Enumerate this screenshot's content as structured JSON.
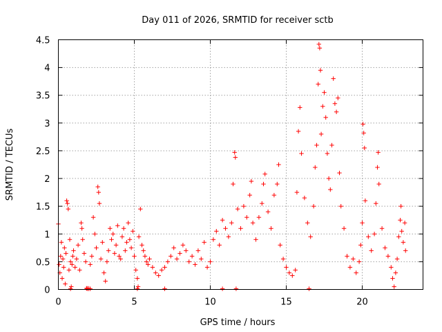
{
  "chart_data": {
    "type": "scatter",
    "title": "Day 011 of 2026, SRMTID for receiver sctb",
    "xlabel": "GPS time / hours",
    "ylabel": "SRMTID / TECUs",
    "xlim": [
      0,
      24
    ],
    "ylim": [
      0,
      4.5
    ],
    "xticks": [
      0,
      5,
      10,
      15,
      20
    ],
    "xtick_labels": [
      "0",
      "5",
      "10",
      "15",
      "20"
    ],
    "yticks": [
      0,
      0.5,
      1,
      1.5,
      2,
      2.5,
      3,
      3.5,
      4,
      4.5
    ],
    "ytick_labels": [
      "0",
      "0.5",
      "1",
      "1.5",
      "2",
      "2.5",
      "3",
      "3.5",
      "4",
      "4.5"
    ],
    "grid": true,
    "marker": "plus",
    "color": "#ff0000",
    "series": [
      {
        "name": "SRMTID",
        "points": [
          [
            0.0,
            1.18
          ],
          [
            0.05,
            0.45
          ],
          [
            0.1,
            0.3
          ],
          [
            0.15,
            0.6
          ],
          [
            0.2,
            0.85
          ],
          [
            0.25,
            0.2
          ],
          [
            0.3,
            0.55
          ],
          [
            0.35,
            0.4
          ],
          [
            0.4,
            0.75
          ],
          [
            0.45,
            0.1
          ],
          [
            0.5,
            0.65
          ],
          [
            0.55,
            1.6
          ],
          [
            0.6,
            1.55
          ],
          [
            0.65,
            1.45
          ],
          [
            0.7,
            0.35
          ],
          [
            0.75,
            0.9
          ],
          [
            0.8,
            0.5
          ],
          [
            0.85,
            0.05
          ],
          [
            0.9,
            0.45
          ],
          [
            0.95,
            0.6
          ],
          [
            1.0,
            0.7
          ],
          [
            1.1,
            0.4
          ],
          [
            1.2,
            0.55
          ],
          [
            1.3,
            0.8
          ],
          [
            1.4,
            0.35
          ],
          [
            1.5,
            1.2
          ],
          [
            1.55,
            1.1
          ],
          [
            1.6,
            0.9
          ],
          [
            1.7,
            0.65
          ],
          [
            1.8,
            0.5
          ],
          [
            1.85,
            0.02
          ],
          [
            1.9,
            0.02
          ],
          [
            2.0,
            0.02
          ],
          [
            2.1,
            0.45
          ],
          [
            2.2,
            0.6
          ],
          [
            2.3,
            1.3
          ],
          [
            2.4,
            1.0
          ],
          [
            2.5,
            0.75
          ],
          [
            2.6,
            1.85
          ],
          [
            2.65,
            1.75
          ],
          [
            2.7,
            1.55
          ],
          [
            2.8,
            0.55
          ],
          [
            2.9,
            0.85
          ],
          [
            3.0,
            0.3
          ],
          [
            3.1,
            0.15
          ],
          [
            3.2,
            0.5
          ],
          [
            3.3,
            0.7
          ],
          [
            3.4,
            1.1
          ],
          [
            3.5,
            0.9
          ],
          [
            3.6,
            1.0
          ],
          [
            3.7,
            0.65
          ],
          [
            3.8,
            0.8
          ],
          [
            3.9,
            1.15
          ],
          [
            4.0,
            0.6
          ],
          [
            4.1,
            0.55
          ],
          [
            4.2,
            0.95
          ],
          [
            4.3,
            1.1
          ],
          [
            4.4,
            0.7
          ],
          [
            4.5,
            0.85
          ],
          [
            4.6,
            1.2
          ],
          [
            4.7,
            0.9
          ],
          [
            4.8,
            0.75
          ],
          [
            4.9,
            1.05
          ],
          [
            5.0,
            0.6
          ],
          [
            5.1,
            0.35
          ],
          [
            5.2,
            0.2
          ],
          [
            5.25,
            0.05
          ],
          [
            5.3,
            0.95
          ],
          [
            5.4,
            1.45
          ],
          [
            5.5,
            0.8
          ],
          [
            5.6,
            0.7
          ],
          [
            5.7,
            0.6
          ],
          [
            5.8,
            0.5
          ],
          [
            5.9,
            0.45
          ],
          [
            6.0,
            0.55
          ],
          [
            6.2,
            0.4
          ],
          [
            6.4,
            0.3
          ],
          [
            6.6,
            0.25
          ],
          [
            6.8,
            0.35
          ],
          [
            7.0,
            0.4
          ],
          [
            7.2,
            0.5
          ],
          [
            7.4,
            0.6
          ],
          [
            7.6,
            0.75
          ],
          [
            7.8,
            0.55
          ],
          [
            8.0,
            0.65
          ],
          [
            8.2,
            0.8
          ],
          [
            8.4,
            0.7
          ],
          [
            8.6,
            0.5
          ],
          [
            8.8,
            0.6
          ],
          [
            9.0,
            0.45
          ],
          [
            9.2,
            0.7
          ],
          [
            9.4,
            0.55
          ],
          [
            9.6,
            0.85
          ],
          [
            9.8,
            0.4
          ],
          [
            10.0,
            0.5
          ],
          [
            10.2,
            0.9
          ],
          [
            10.4,
            1.05
          ],
          [
            10.6,
            0.8
          ],
          [
            10.8,
            1.25
          ],
          [
            11.0,
            1.1
          ],
          [
            11.2,
            0.95
          ],
          [
            11.4,
            1.2
          ],
          [
            11.5,
            1.9
          ],
          [
            11.6,
            2.47
          ],
          [
            11.65,
            2.38
          ],
          [
            11.8,
            1.45
          ],
          [
            12.0,
            1.1
          ],
          [
            12.2,
            1.5
          ],
          [
            12.4,
            1.3
          ],
          [
            12.6,
            1.7
          ],
          [
            12.7,
            1.95
          ],
          [
            12.8,
            1.2
          ],
          [
            13.0,
            0.9
          ],
          [
            13.2,
            1.3
          ],
          [
            13.4,
            1.55
          ],
          [
            13.5,
            1.9
          ],
          [
            13.6,
            2.08
          ],
          [
            13.8,
            1.4
          ],
          [
            14.0,
            1.1
          ],
          [
            14.2,
            1.7
          ],
          [
            14.4,
            1.9
          ],
          [
            14.5,
            2.25
          ],
          [
            14.6,
            0.8
          ],
          [
            14.8,
            0.55
          ],
          [
            15.0,
            0.4
          ],
          [
            15.2,
            0.3
          ],
          [
            15.4,
            0.25
          ],
          [
            15.6,
            0.35
          ],
          [
            15.7,
            1.75
          ],
          [
            15.8,
            2.85
          ],
          [
            15.9,
            3.28
          ],
          [
            16.0,
            2.45
          ],
          [
            16.2,
            1.65
          ],
          [
            16.4,
            1.2
          ],
          [
            16.6,
            0.95
          ],
          [
            16.8,
            1.5
          ],
          [
            16.9,
            2.2
          ],
          [
            17.0,
            2.6
          ],
          [
            17.1,
            3.7
          ],
          [
            17.15,
            4.42
          ],
          [
            17.2,
            4.35
          ],
          [
            17.25,
            3.95
          ],
          [
            17.3,
            2.8
          ],
          [
            17.4,
            3.3
          ],
          [
            17.5,
            3.55
          ],
          [
            17.6,
            3.1
          ],
          [
            17.7,
            2.45
          ],
          [
            17.8,
            2.0
          ],
          [
            17.9,
            1.8
          ],
          [
            18.0,
            2.6
          ],
          [
            18.1,
            3.8
          ],
          [
            18.2,
            3.35
          ],
          [
            18.3,
            3.2
          ],
          [
            18.4,
            3.45
          ],
          [
            18.5,
            2.1
          ],
          [
            18.6,
            1.5
          ],
          [
            18.8,
            1.1
          ],
          [
            19.0,
            0.6
          ],
          [
            19.2,
            0.4
          ],
          [
            19.4,
            0.55
          ],
          [
            19.6,
            0.3
          ],
          [
            19.8,
            0.5
          ],
          [
            19.9,
            0.8
          ],
          [
            20.0,
            1.2
          ],
          [
            20.05,
            2.98
          ],
          [
            20.1,
            2.82
          ],
          [
            20.15,
            2.55
          ],
          [
            20.2,
            1.6
          ],
          [
            20.4,
            0.95
          ],
          [
            20.6,
            0.7
          ],
          [
            20.8,
            1.0
          ],
          [
            20.9,
            1.55
          ],
          [
            21.0,
            2.2
          ],
          [
            21.05,
            2.47
          ],
          [
            21.1,
            1.9
          ],
          [
            21.3,
            1.1
          ],
          [
            21.5,
            0.75
          ],
          [
            21.7,
            0.6
          ],
          [
            21.9,
            0.4
          ],
          [
            22.0,
            0.2
          ],
          [
            22.1,
            0.05
          ],
          [
            22.2,
            0.3
          ],
          [
            22.3,
            0.55
          ],
          [
            22.4,
            0.95
          ],
          [
            22.5,
            1.25
          ],
          [
            22.55,
            1.5
          ],
          [
            22.6,
            1.05
          ],
          [
            22.7,
            0.85
          ],
          [
            22.8,
            1.2
          ],
          [
            22.85,
            0.7
          ]
        ]
      }
    ],
    "zero_markers_x": [
      0.8,
      1.9,
      2.0,
      2.1,
      5.2,
      7.0,
      10.8,
      11.7,
      16.5
    ]
  }
}
